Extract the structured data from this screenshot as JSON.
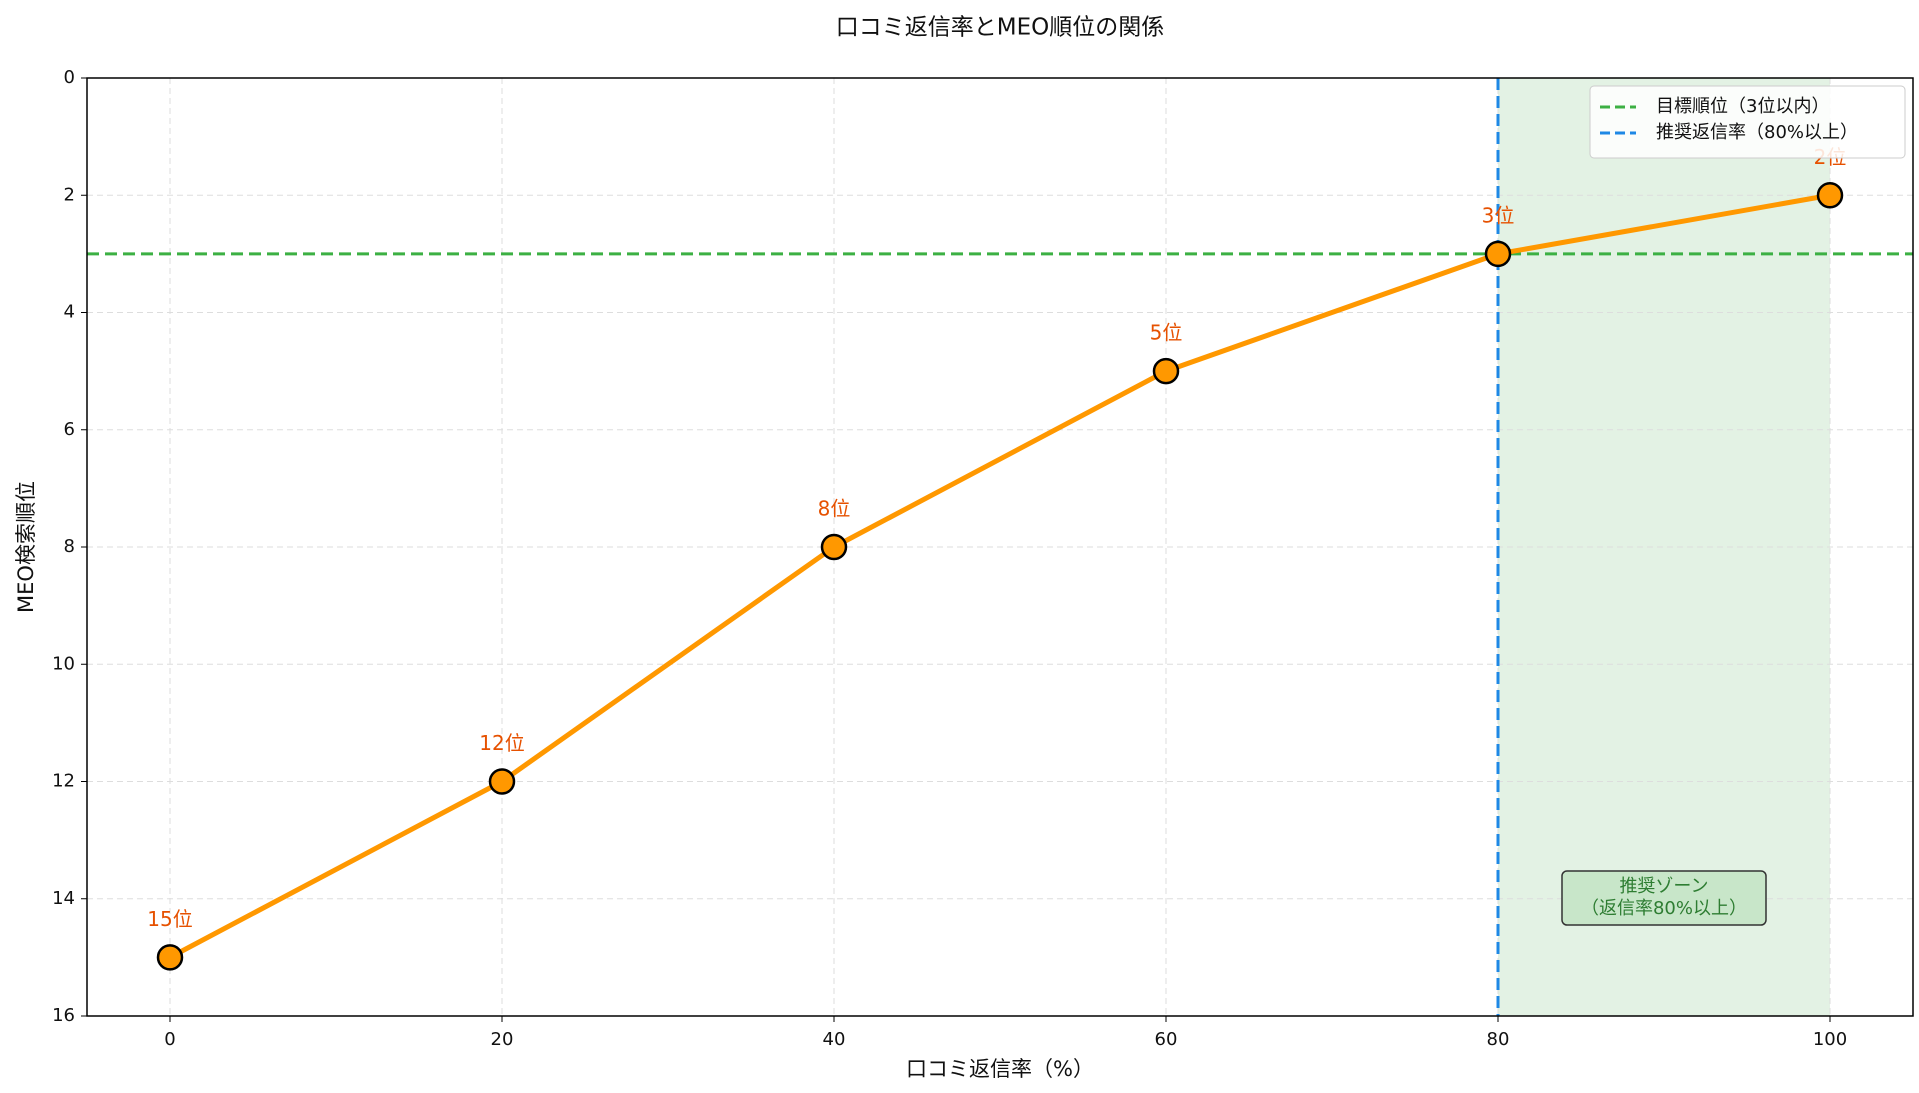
{
  "chart_data": {
    "type": "line",
    "title": "口コミ返信率とMEO順位の関係",
    "x_label": "口コミ返信率（%）",
    "y_label": "MEO検索順位",
    "x": [
      0,
      20,
      40,
      60,
      80,
      100
    ],
    "series": [
      {
        "color": "#ff9800",
        "values": [
          15,
          12,
          8,
          5,
          3,
          2
        ],
        "value_labels": [
          "15位",
          "12位",
          "8位",
          "5位",
          "3位",
          "2位"
        ],
        "label_color": "#e65100"
      }
    ],
    "xlim": [
      -5,
      105
    ],
    "xticks": [
      0,
      20,
      40,
      60,
      80,
      100
    ],
    "ylim": [
      0,
      16
    ],
    "yticks": [
      0,
      2,
      4,
      6,
      8,
      10,
      12,
      14,
      16
    ],
    "y_inverted": true,
    "grid": true,
    "hlines": [
      {
        "value": 3,
        "label": "目標順位（3位以内）",
        "color": "#3cb043"
      }
    ],
    "vlines": [
      {
        "value": 80,
        "label": "推奨返信率（80%以上）",
        "color": "#1e88e5"
      }
    ],
    "shade": {
      "x": [
        80,
        100
      ],
      "color": "#c8e6c9"
    },
    "annotation": {
      "lines": [
        "推奨ゾーン",
        "（返信率80%以上）"
      ],
      "color": "#2e7d32"
    },
    "legend": "upper right"
  }
}
